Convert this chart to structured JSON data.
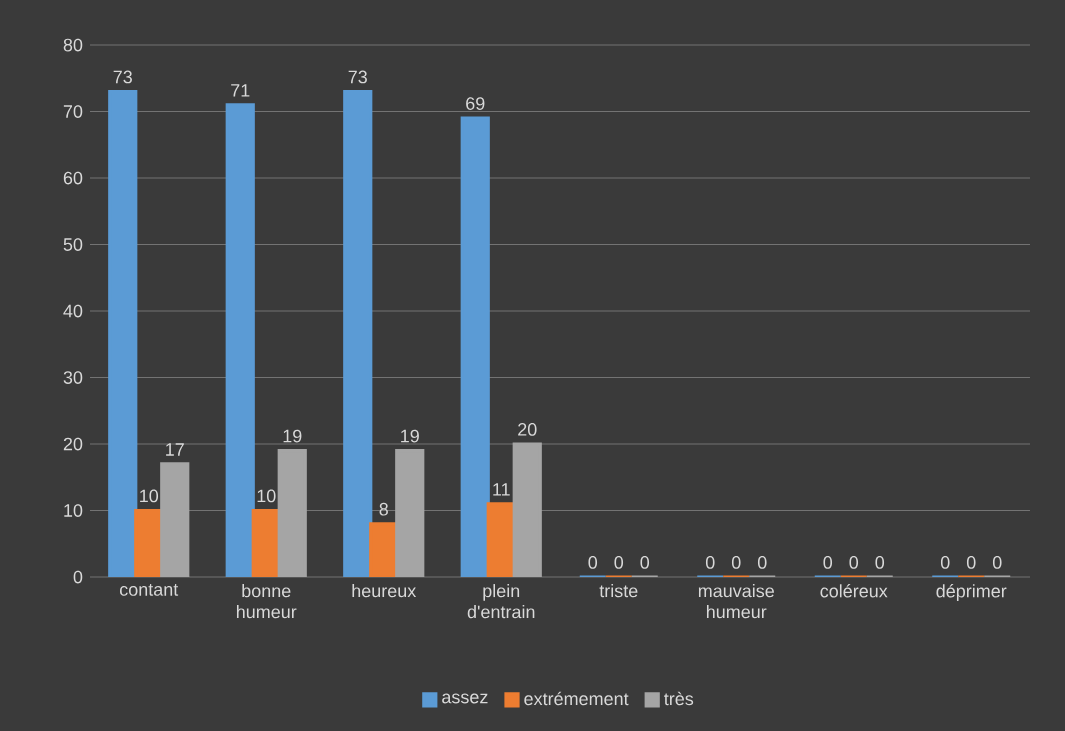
{
  "chart_data": {
    "type": "bar",
    "categories": [
      "contant",
      "bonne humeur",
      "heureux",
      "plein d'entrain",
      "triste",
      "mauvaise humeur",
      "coléreux",
      "déprimer"
    ],
    "series": [
      {
        "name": "assez",
        "color": "#5b9bd5",
        "values": [
          73,
          71,
          73,
          69,
          0,
          0,
          0,
          0
        ]
      },
      {
        "name": "extrémement",
        "color": "#ed7d31",
        "values": [
          10,
          10,
          8,
          11,
          0,
          0,
          0,
          0
        ]
      },
      {
        "name": "très",
        "color": "#a5a5a5",
        "values": [
          17,
          19,
          19,
          20,
          0,
          0,
          0,
          0
        ]
      }
    ],
    "ylim": [
      0,
      80
    ],
    "yticks": [
      0,
      10,
      20,
      30,
      40,
      50,
      60,
      70,
      80
    ],
    "grid": "y",
    "legend": "bottom",
    "data_labels": true
  }
}
